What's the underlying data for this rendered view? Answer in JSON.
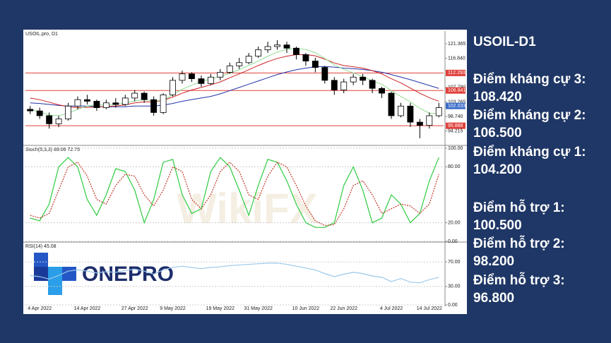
{
  "chart_data": [
    {
      "type": "candlestick",
      "title": "USOIL.pro, D1",
      "categories": [
        null,
        "4 Apr 2022",
        null,
        null,
        null,
        null,
        "14 Apr 2022",
        null,
        null,
        null,
        null,
        "27 Apr 2022",
        null,
        null,
        null,
        "9 May 2022",
        null,
        null,
        null,
        null,
        "19 May 2022",
        null,
        null,
        null,
        "31 May 2022",
        null,
        null,
        null,
        null,
        "10 Jun 2022",
        null,
        null,
        null,
        "22 Jun 2022",
        null,
        null,
        null,
        null,
        "4 Jul 2022",
        null,
        null,
        null,
        "14 Jul 2022",
        null
      ],
      "open": [
        101,
        100.5,
        99,
        96.5,
        98,
        102,
        104,
        103.5,
        101.5,
        103,
        102.5,
        104.5,
        106,
        104,
        100,
        105.5,
        110,
        112,
        110.5,
        109,
        111,
        112.5,
        114.5,
        115.5,
        117.5,
        119.5,
        120.5,
        121,
        120,
        118,
        116,
        114,
        110,
        107,
        109.5,
        111,
        110,
        107.5,
        106,
        99,
        102,
        97,
        96,
        99
      ],
      "high": [
        102,
        101.5,
        100,
        99,
        103,
        105,
        105.5,
        104,
        104,
        104.5,
        105.5,
        107,
        106.5,
        105,
        106,
        111,
        113,
        112.5,
        111.5,
        112,
        113.5,
        115.5,
        117,
        118.5,
        120.5,
        122,
        122.5,
        122,
        120.5,
        118.5,
        117,
        114.5,
        111,
        110.5,
        112,
        112,
        110.5,
        108,
        106.5,
        103,
        103,
        98,
        100,
        103
      ],
      "low": [
        99.5,
        98,
        95,
        95.5,
        97.5,
        101,
        102.5,
        100.5,
        101,
        101.5,
        102,
        103.5,
        103,
        99,
        99.5,
        105,
        109,
        109.5,
        108,
        108.5,
        110,
        112,
        113.5,
        115,
        117,
        118.5,
        119.5,
        118.5,
        116.5,
        114.5,
        112.5,
        109,
        105.5,
        106,
        108.5,
        108.5,
        106,
        104.5,
        98,
        98.5,
        95.5,
        92,
        95,
        98.5
      ],
      "close": [
        100.5,
        99,
        96.5,
        98,
        102,
        104,
        103.5,
        101.5,
        103,
        102.5,
        104.5,
        106,
        104,
        100,
        105.5,
        110,
        112,
        110.5,
        109,
        111,
        112.5,
        114.5,
        115.5,
        117.5,
        119.5,
        120.5,
        121,
        120,
        118,
        116,
        114,
        110,
        107,
        109.5,
        111,
        110,
        107.5,
        106,
        99,
        102,
        97,
        96,
        99,
        101.5
      ],
      "up_color": "#ffffff",
      "down_color": "#000000",
      "overlays": [
        {
          "color": "#2233aa",
          "values": [
            103,
            102.8,
            102.5,
            102.2,
            102,
            102,
            102,
            101.8,
            101.8,
            101.8,
            101.8,
            102,
            102,
            102,
            102.3,
            102.8,
            103.5,
            104,
            104.5,
            105,
            105.8,
            106.8,
            107.8,
            108.8,
            109.8,
            110.8,
            111.8,
            112.6,
            113.3,
            113.8,
            114.2,
            114.3,
            114.1,
            113.8,
            113.6,
            113.4,
            113,
            112.5,
            111.8,
            111,
            110.2,
            109.3,
            108.4,
            107.5
          ]
        },
        {
          "color": "#cc2222",
          "values": [
            104.5,
            104,
            103.2,
            102.4,
            101.8,
            101.5,
            101.6,
            101.7,
            101.9,
            102,
            102.4,
            103,
            103.3,
            103.3,
            103.8,
            104.8,
            106,
            107,
            107.8,
            108.6,
            109.5,
            110.8,
            112,
            113.3,
            114.6,
            115.8,
            116.8,
            117.5,
            118,
            118,
            117.6,
            116.6,
            115.4,
            114.6,
            114.2,
            113.8,
            113,
            112,
            110.5,
            109.2,
            107.6,
            106,
            104.6,
            103.5
          ]
        },
        {
          "color": "#8fdc8f",
          "values": [
            101,
            100.2,
            99.2,
            99,
            99.8,
            101,
            102,
            102.3,
            102.4,
            102.5,
            103,
            103.6,
            104,
            103.6,
            103.8,
            105.5,
            107.2,
            108.5,
            109.6,
            110.5,
            111.2,
            112.2,
            113.3,
            114.6,
            116,
            117.5,
            118.8,
            119.6,
            120,
            119.6,
            118.6,
            116.8,
            114.8,
            113.4,
            112.3,
            111.2,
            109.8,
            108.8,
            106.8,
            105,
            103.3,
            101.3,
            99.8,
            99.6
          ]
        }
      ],
      "hlines": [
        {
          "value": 112.293,
          "color": "#e0403a"
        },
        {
          "value": 106.841,
          "color": "#e0403a"
        },
        {
          "value": 95.888,
          "color": "#e0403a"
        }
      ],
      "last_price": {
        "value": 102.033,
        "color": "#3a6cc8"
      },
      "ylim": [
        90,
        124
      ],
      "yticks": [
        121.365,
        {
          "value": 116.84,
          "label": "116.840"
        },
        {
          "value": 107.79,
          "label": "107.790"
        },
        103.265,
        {
          "value": 98.74,
          "label": "98.740"
        },
        94.215
      ]
    },
    {
      "type": "line",
      "title": "Stoch(5,3,3) 89.06 72.75",
      "series": [
        {
          "color": "#2ecc40",
          "values": [
            25,
            22,
            40,
            80,
            90,
            80,
            45,
            28,
            50,
            78,
            75,
            55,
            20,
            45,
            85,
            88,
            50,
            30,
            35,
            75,
            90,
            80,
            55,
            28,
            60,
            88,
            85,
            65,
            40,
            20,
            15,
            15,
            20,
            60,
            80,
            55,
            20,
            25,
            50,
            40,
            20,
            30,
            65,
            90
          ]
        },
        {
          "color": "#c0392b",
          "dashed": true,
          "values": [
            28,
            25,
            30,
            55,
            80,
            85,
            70,
            45,
            40,
            60,
            72,
            70,
            50,
            38,
            55,
            80,
            75,
            45,
            35,
            50,
            75,
            85,
            75,
            50,
            45,
            70,
            85,
            80,
            60,
            38,
            22,
            17,
            18,
            35,
            60,
            65,
            50,
            30,
            35,
            40,
            38,
            30,
            40,
            72
          ]
        }
      ],
      "ylim": [
        0,
        100
      ],
      "yticks": [
        {
          "value": 100,
          "label": "100.00"
        },
        {
          "value": 80,
          "label": "80.00"
        },
        {
          "value": 20,
          "label": "20.00"
        },
        {
          "value": 0,
          "label": "0.00"
        }
      ]
    },
    {
      "type": "line",
      "title": "RSI(14) 45.08",
      "series": [
        {
          "color": "#9cc8e8",
          "values": [
            48,
            46,
            42,
            48,
            55,
            57,
            55,
            52,
            54,
            53,
            56,
            58,
            55,
            50,
            57,
            61,
            63,
            61,
            59,
            61,
            62,
            64,
            65,
            66,
            67,
            68,
            68,
            66,
            63,
            60,
            57,
            51,
            46,
            50,
            53,
            51,
            47,
            45,
            38,
            43,
            37,
            36,
            41,
            45
          ]
        }
      ],
      "ylim": [
        0,
        100
      ],
      "yticks": [
        {
          "value": 70,
          "label": "70.00"
        },
        {
          "value": 30,
          "label": "30.00"
        },
        {
          "value": 0,
          "label": "0.00"
        }
      ]
    }
  ],
  "logo": "ONEPRO",
  "watermark": "WikiFX",
  "panel": {
    "title": "USOIL-D1",
    "levels": [
      {
        "label": "Điểm kháng cự 3:",
        "value": "108.420"
      },
      {
        "label": "Điểm kháng cự 2:",
        "value": "106.500"
      },
      {
        "label": "Điểm kháng cự 1:",
        "value": "104.200"
      },
      {
        "label": "Điểm hỗ trợ 1:",
        "value": "100.500"
      },
      {
        "label": "Điểm hỗ trợ 2:",
        "value": "98.200"
      },
      {
        "label": "Điểm hỗ trợ 3:",
        "value": "96.800"
      }
    ]
  }
}
